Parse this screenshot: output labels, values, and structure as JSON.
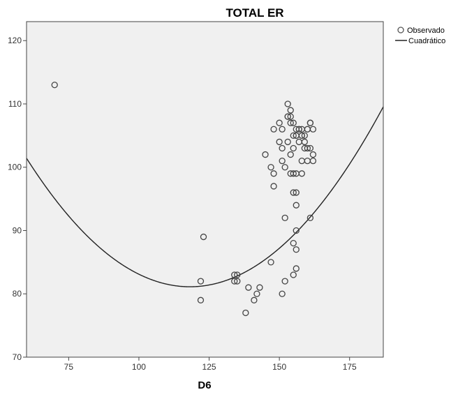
{
  "chart_data": {
    "type": "scatter",
    "title": "TOTAL ER",
    "xlabel": "D6",
    "ylabel": "",
    "xlim": [
      60,
      187
    ],
    "ylim": [
      70,
      123
    ],
    "x_ticks": [
      75,
      100,
      125,
      150,
      175
    ],
    "y_ticks": [
      70,
      80,
      90,
      100,
      110,
      120
    ],
    "legend": {
      "position": "top-right",
      "entries": [
        "Observado",
        "Cuadrático"
      ]
    },
    "background": "#f0f0f0",
    "series": [
      {
        "name": "Observado",
        "kind": "points",
        "x": [
          70,
          123,
          122,
          122,
          134,
          134,
          135,
          135,
          138,
          139,
          141,
          142,
          143,
          147,
          151,
          152,
          155,
          156,
          156,
          155,
          156,
          156,
          155,
          156,
          152,
          158,
          161,
          147,
          148,
          148,
          145,
          151,
          152,
          154,
          155,
          156,
          158,
          160,
          162,
          162,
          150,
          151,
          153,
          154,
          155,
          156,
          157,
          158,
          159,
          160,
          161,
          150,
          151,
          153,
          154,
          155,
          156,
          157,
          158,
          159,
          160,
          161,
          162,
          153,
          154,
          153,
          154,
          155,
          156,
          157,
          158,
          159,
          160,
          161,
          148
        ],
        "y": [
          113,
          89,
          82,
          79,
          83,
          82,
          83,
          82,
          77,
          81,
          79,
          80,
          81,
          85,
          80,
          82,
          88,
          87,
          84,
          83,
          90,
          94,
          96,
          96,
          92,
          99,
          92,
          100,
          99,
          97,
          102,
          101,
          100,
          99,
          99,
          99,
          101,
          101,
          102,
          101,
          104,
          103,
          104,
          102,
          103,
          105,
          104,
          105,
          103,
          103,
          103,
          107,
          106,
          108,
          107,
          105,
          105,
          106,
          106,
          104,
          106,
          107,
          106,
          110,
          109,
          108,
          108,
          107,
          106,
          106,
          105,
          105,
          106,
          107,
          106
        ]
      },
      {
        "name": "Cuadrático",
        "kind": "curve",
        "coefficients": {
          "a": 0.006,
          "b": -1.418,
          "c": 164.9
        }
      }
    ]
  }
}
